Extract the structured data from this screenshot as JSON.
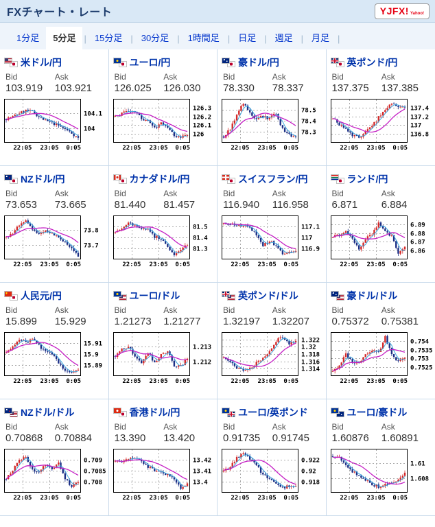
{
  "header": {
    "title": "FXチャート・レート",
    "logo_text": "YJFX!",
    "logo_sub": "Yahoo!"
  },
  "tabs": [
    {
      "label": "1分足",
      "active": false
    },
    {
      "label": "5分足",
      "active": true
    },
    {
      "label": "15分足",
      "active": false
    },
    {
      "label": "30分足",
      "active": false
    },
    {
      "label": "1時間足",
      "active": false
    },
    {
      "label": "日足",
      "active": false
    },
    {
      "label": "週足",
      "active": false
    },
    {
      "label": "月足",
      "active": false
    }
  ],
  "quote_labels": {
    "bid": "Bid",
    "ask": "Ask"
  },
  "colors": {
    "candle_up": "#d42a2a",
    "candle_down": "#1c2f86",
    "ma_long": "#c520c5",
    "ma_short": "#3fa9e0",
    "grid": "#aaaaaa",
    "plot_border": "#000000"
  },
  "pairs": [
    {
      "name": "米ドル/円",
      "flags": [
        "us",
        "jp"
      ],
      "bid": "103.919",
      "ask": "103.921",
      "chart_data": {
        "type": "candlestick",
        "x_ticks": [
          "22:05",
          "23:05",
          "0:05"
        ],
        "y_ticks": [
          "104.1",
          "104"
        ],
        "trend_norm": [
          0.55,
          0.6,
          0.68,
          0.75,
          0.72,
          0.6,
          0.5,
          0.45,
          0.38,
          0.3,
          0.2,
          0.08
        ]
      }
    },
    {
      "name": "ユーロ/円",
      "flags": [
        "eu",
        "jp"
      ],
      "bid": "126.025",
      "ask": "126.030",
      "chart_data": {
        "type": "candlestick",
        "x_ticks": [
          "22:05",
          "23:05",
          "0:05"
        ],
        "y_ticks": [
          "126.3",
          "126.2",
          "126.1",
          "126"
        ],
        "trend_norm": [
          0.6,
          0.68,
          0.72,
          0.7,
          0.55,
          0.5,
          0.32,
          0.45,
          0.35,
          0.15,
          0.1,
          0.14
        ]
      }
    },
    {
      "name": "豪ドル/円",
      "flags": [
        "au",
        "jp"
      ],
      "bid": "78.330",
      "ask": "78.337",
      "chart_data": {
        "type": "candlestick",
        "x_ticks": [
          "22:05",
          "23:05",
          "0:05"
        ],
        "y_ticks": [
          "78.5",
          "78.4",
          "78.3"
        ],
        "trend_norm": [
          0.12,
          0.3,
          0.65,
          0.92,
          0.68,
          0.55,
          0.6,
          0.55,
          0.68,
          0.3,
          0.18,
          0.08
        ]
      }
    },
    {
      "name": "英ポンド/円",
      "flags": [
        "gb",
        "jp"
      ],
      "bid": "137.375",
      "ask": "137.385",
      "chart_data": {
        "type": "candlestick",
        "x_ticks": [
          "22:05",
          "23:05",
          "0:05"
        ],
        "y_ticks": [
          "137.4",
          "137.2",
          "137",
          "136.8"
        ],
        "trend_norm": [
          0.55,
          0.42,
          0.3,
          0.16,
          0.1,
          0.22,
          0.38,
          0.58,
          0.78,
          0.92,
          0.8,
          0.84
        ]
      }
    },
    {
      "name": "NZドル/円",
      "flags": [
        "nz",
        "jp"
      ],
      "bid": "73.653",
      "ask": "73.665",
      "chart_data": {
        "type": "candlestick",
        "x_ticks": [
          "22:05",
          "23:05",
          "0:05"
        ],
        "y_ticks": [
          "73.8",
          "73.7"
        ],
        "trend_norm": [
          0.5,
          0.62,
          0.82,
          0.88,
          0.68,
          0.62,
          0.66,
          0.58,
          0.52,
          0.38,
          0.22,
          0.06
        ]
      }
    },
    {
      "name": "カナダドル/円",
      "flags": [
        "ca",
        "jp"
      ],
      "bid": "81.440",
      "ask": "81.457",
      "chart_data": {
        "type": "candlestick",
        "x_ticks": [
          "22:05",
          "23:05",
          "0:05"
        ],
        "y_ticks": [
          "81.5",
          "81.4",
          "81.3"
        ],
        "trend_norm": [
          0.62,
          0.72,
          0.85,
          0.8,
          0.68,
          0.74,
          0.52,
          0.48,
          0.3,
          0.08,
          0.18,
          0.32
        ]
      }
    },
    {
      "name": "スイスフラン/円",
      "flags": [
        "ch",
        "jp"
      ],
      "bid": "116.940",
      "ask": "116.958",
      "chart_data": {
        "type": "candlestick",
        "x_ticks": [
          "22:05",
          "23:05",
          "0:05"
        ],
        "y_ticks": [
          "117.1",
          "117",
          "116.9"
        ],
        "trend_norm": [
          0.85,
          0.83,
          0.8,
          0.78,
          0.74,
          0.58,
          0.32,
          0.42,
          0.3,
          0.1,
          0.14,
          0.2
        ]
      }
    },
    {
      "name": "ランド/円",
      "flags": [
        "za",
        "jp"
      ],
      "bid": "6.871",
      "ask": "6.884",
      "chart_data": {
        "type": "candlestick",
        "x_ticks": [
          "22:05",
          "23:05",
          "0:05"
        ],
        "y_ticks": [
          "6.89",
          "6.88",
          "6.87",
          "6.86"
        ],
        "trend_norm": [
          0.5,
          0.56,
          0.62,
          0.5,
          0.18,
          0.48,
          0.55,
          0.88,
          0.62,
          0.55,
          0.08,
          0.3
        ]
      }
    },
    {
      "name": "人民元/円",
      "flags": [
        "cn",
        "jp"
      ],
      "bid": "15.899",
      "ask": "15.929",
      "chart_data": {
        "type": "candlestick",
        "x_ticks": [
          "22:05",
          "23:05",
          "0:05"
        ],
        "y_ticks": [
          "15.91",
          "15.9",
          "15.89"
        ],
        "trend_norm": [
          0.52,
          0.68,
          0.85,
          0.8,
          0.84,
          0.72,
          0.55,
          0.5,
          0.3,
          0.12,
          0.06,
          0.14
        ]
      }
    },
    {
      "name": "ユーロ/ドル",
      "flags": [
        "eu",
        "us"
      ],
      "bid": "1.21273",
      "ask": "1.21277",
      "chart_data": {
        "type": "candlestick",
        "x_ticks": [
          "22:05",
          "23:05",
          "0:05"
        ],
        "y_ticks": [
          "1.213",
          "1.212"
        ],
        "trend_norm": [
          0.45,
          0.62,
          0.68,
          0.45,
          0.3,
          0.55,
          0.28,
          0.5,
          0.58,
          0.22,
          0.2,
          0.4
        ]
      }
    },
    {
      "name": "英ポンド/ドル",
      "flags": [
        "gb",
        "us"
      ],
      "bid": "1.32197",
      "ask": "1.32207",
      "chart_data": {
        "type": "candlestick",
        "x_ticks": [
          "22:05",
          "23:05",
          "0:05"
        ],
        "y_ticks": [
          "1.322",
          "1.32",
          "1.318",
          "1.316",
          "1.314"
        ],
        "trend_norm": [
          0.42,
          0.32,
          0.18,
          0.08,
          0.14,
          0.28,
          0.42,
          0.58,
          0.82,
          0.92,
          0.76,
          0.8
        ]
      }
    },
    {
      "name": "豪ドル/ドル",
      "flags": [
        "au",
        "us"
      ],
      "bid": "0.75372",
      "ask": "0.75381",
      "chart_data": {
        "type": "candlestick",
        "x_ticks": [
          "22:05",
          "23:05",
          "0:05"
        ],
        "y_ticks": [
          "0.754",
          "0.7535",
          "0.753",
          "0.7525"
        ],
        "trend_norm": [
          0.08,
          0.22,
          0.5,
          0.32,
          0.28,
          0.5,
          0.58,
          0.52,
          0.92,
          0.48,
          0.32,
          0.4
        ]
      }
    },
    {
      "name": "NZドル/ドル",
      "flags": [
        "nz",
        "us"
      ],
      "bid": "0.70868",
      "ask": "0.70884",
      "chart_data": {
        "type": "candlestick",
        "x_ticks": [
          "22:05",
          "23:05",
          "0:05"
        ],
        "y_ticks": [
          "0.709",
          "0.7085",
          "0.708"
        ],
        "trend_norm": [
          0.3,
          0.52,
          0.78,
          0.8,
          0.52,
          0.48,
          0.65,
          0.52,
          0.72,
          0.3,
          0.12,
          0.25
        ]
      }
    },
    {
      "name": "香港ドル/円",
      "flags": [
        "hk",
        "jp"
      ],
      "bid": "13.390",
      "ask": "13.420",
      "chart_data": {
        "type": "candlestick",
        "x_ticks": [
          "22:05",
          "23:05",
          "0:05"
        ],
        "y_ticks": [
          "13.42",
          "13.41",
          "13.4"
        ],
        "trend_norm": [
          0.72,
          0.68,
          0.78,
          0.8,
          0.72,
          0.6,
          0.5,
          0.44,
          0.4,
          0.3,
          0.08,
          0.18
        ]
      }
    },
    {
      "name": "ユーロ/英ポンド",
      "flags": [
        "eu",
        "gb"
      ],
      "bid": "0.91735",
      "ask": "0.91745",
      "chart_data": {
        "type": "candlestick",
        "x_ticks": [
          "22:05",
          "23:05",
          "0:05"
        ],
        "y_ticks": [
          "0.922",
          "0.92",
          "0.918"
        ],
        "trend_norm": [
          0.48,
          0.6,
          0.82,
          0.95,
          0.78,
          0.62,
          0.42,
          0.28,
          0.18,
          0.08,
          0.14,
          0.14
        ]
      }
    },
    {
      "name": "ユーロ/豪ドル",
      "flags": [
        "eu",
        "au"
      ],
      "bid": "1.60876",
      "ask": "1.60891",
      "chart_data": {
        "type": "candlestick",
        "x_ticks": [
          "22:05",
          "23:05",
          "0:05"
        ],
        "y_ticks": [
          "1.61",
          "1.608"
        ],
        "trend_norm": [
          0.85,
          0.82,
          0.62,
          0.48,
          0.38,
          0.28,
          0.16,
          0.12,
          0.16,
          0.2,
          0.28,
          0.45
        ]
      }
    }
  ]
}
